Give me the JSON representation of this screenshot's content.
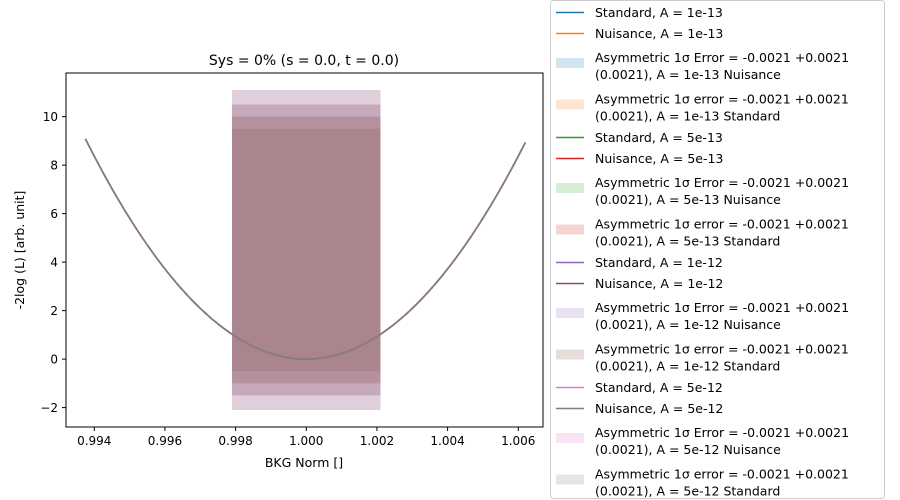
{
  "chart_data": {
    "type": "line",
    "title": "Sys = 0% (s = 0.0, t = 0.0)",
    "xlabel": "BKG Norm []",
    "ylabel": "-2log (L) [arb. unit]",
    "xlim": [
      0.9932,
      1.0067
    ],
    "ylim": [
      -2.8,
      11.8
    ],
    "x_ticks": [
      {
        "value": 0.994,
        "label": "0.994"
      },
      {
        "value": 0.996,
        "label": "0.996"
      },
      {
        "value": 0.998,
        "label": "0.998"
      },
      {
        "value": 1.0,
        "label": "1.000"
      },
      {
        "value": 1.002,
        "label": "1.002"
      },
      {
        "value": 1.004,
        "label": "1.004"
      },
      {
        "value": 1.006,
        "label": "1.006"
      }
    ],
    "y_ticks": [
      {
        "value": -2,
        "label": "−2"
      },
      {
        "value": 0,
        "label": "0"
      },
      {
        "value": 2,
        "label": "2"
      },
      {
        "value": 4,
        "label": "4"
      },
      {
        "value": 6,
        "label": "6"
      },
      {
        "value": 8,
        "label": "8"
      },
      {
        "value": 10,
        "label": "10"
      }
    ],
    "grid": false,
    "legend_placement": "outside-right",
    "curve": {
      "x_min": 0.99375,
      "x_max": 1.0062,
      "minimum": 1.0,
      "curvature": 232500
    },
    "lines": [
      {
        "name": "Standard, A = 1e-13",
        "color": "#1f77b4"
      },
      {
        "name": "Nuisance, A = 1e-13",
        "color": "#ff7f0e"
      },
      {
        "name": "Standard, A = 5e-13",
        "color": "#2ca02c"
      },
      {
        "name": "Nuisance, A = 5e-13",
        "color": "#d62728"
      },
      {
        "name": "Standard, A = 1e-12",
        "color": "#9467bd"
      },
      {
        "name": "Nuisance, A = 1e-12",
        "color": "#8c564b"
      },
      {
        "name": "Standard, A = 5e-12",
        "color": "#e377c2"
      },
      {
        "name": "Nuisance, A = 5e-12",
        "color": "#7f7f7f"
      }
    ],
    "bands": [
      {
        "name": [
          "Asymmetric 1σ Error = -0.0021 +0.0021",
          "(0.0021), A = 1e-13 Nuisance"
        ],
        "color": "#1f77b4",
        "x": [
          0.9979,
          1.0021
        ],
        "y": [
          -0.5,
          9.5
        ]
      },
      {
        "name": [
          "Asymmetric 1σ error = -0.0021 +0.0021",
          "(0.0021), A = 1e-13 Standard"
        ],
        "color": "#ff7f0e",
        "x": [
          0.9979,
          1.0021
        ],
        "y": [
          -0.5,
          9.5
        ]
      },
      {
        "name": [
          "Asymmetric 1σ Error = -0.0021 +0.0021",
          "(0.0021), A = 5e-13 Nuisance"
        ],
        "color": "#2ca02c",
        "x": [
          0.9979,
          1.0021
        ],
        "y": [
          -1.0,
          10.0
        ]
      },
      {
        "name": [
          "Asymmetric 1σ error = -0.0021 +0.0021",
          "(0.0021), A = 5e-13 Standard"
        ],
        "color": "#d62728",
        "x": [
          0.9979,
          1.0021
        ],
        "y": [
          -1.0,
          10.0
        ]
      },
      {
        "name": [
          "Asymmetric 1σ Error = -0.0021 +0.0021",
          "(0.0021), A = 1e-12 Nuisance"
        ],
        "color": "#9467bd",
        "x": [
          0.9979,
          1.0021
        ],
        "y": [
          -1.5,
          10.5
        ]
      },
      {
        "name": [
          "Asymmetric 1σ error = -0.0021 +0.0021",
          "(0.0021), A = 1e-12 Standard"
        ],
        "color": "#8c564b",
        "x": [
          0.9979,
          1.0021
        ],
        "y": [
          -1.5,
          10.5
        ]
      },
      {
        "name": [
          "Asymmetric 1σ Error = -0.0021 +0.0021",
          "(0.0021), A = 5e-12 Nuisance"
        ],
        "color": "#e377c2",
        "x": [
          0.9979,
          1.0021
        ],
        "y": [
          -2.1,
          11.1
        ]
      },
      {
        "name": [
          "Asymmetric 1σ error = -0.0021 +0.0021",
          "(0.0021), A = 5e-12 Standard"
        ],
        "color": "#7f7f7f",
        "x": [
          0.9979,
          1.0021
        ],
        "y": [
          -2.1,
          11.1
        ]
      }
    ],
    "legend_order": [
      {
        "kind": "line",
        "i": 0
      },
      {
        "kind": "line",
        "i": 1
      },
      {
        "kind": "band",
        "i": 0
      },
      {
        "kind": "band",
        "i": 1
      },
      {
        "kind": "line",
        "i": 2
      },
      {
        "kind": "line",
        "i": 3
      },
      {
        "kind": "band",
        "i": 2
      },
      {
        "kind": "band",
        "i": 3
      },
      {
        "kind": "line",
        "i": 4
      },
      {
        "kind": "line",
        "i": 5
      },
      {
        "kind": "band",
        "i": 4
      },
      {
        "kind": "band",
        "i": 5
      },
      {
        "kind": "line",
        "i": 6
      },
      {
        "kind": "line",
        "i": 7
      },
      {
        "kind": "band",
        "i": 6
      },
      {
        "kind": "band",
        "i": 7
      }
    ]
  }
}
